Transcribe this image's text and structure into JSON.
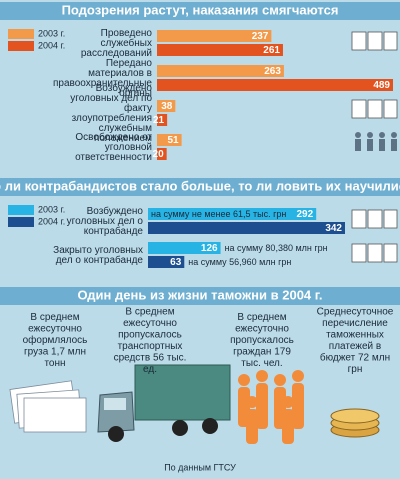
{
  "chart_data": [
    {
      "type": "bar",
      "orientation": "horizontal",
      "title": "Подозрения растут, наказания смягчаются",
      "categories": [
        "Проведено служебных расследований",
        "Передано материалов в правоохранительные органы",
        "Возбуждено уголовных дел по факту злоупотребления служебным положением",
        "Освобождено от уголовной ответственности"
      ],
      "series": [
        {
          "name": "2003 г.",
          "color": "#f39a4a",
          "values": [
            237,
            263,
            38,
            51
          ]
        },
        {
          "name": "2004 г.",
          "color": "#e2531f",
          "values": [
            261,
            489,
            21,
            20
          ]
        }
      ]
    },
    {
      "type": "bar",
      "orientation": "horizontal",
      "title": "То ли контрабандистов стало больше, то ли ловить их научились",
      "categories": [
        "Возбуждено уголовных дел о контрабанде",
        "Закрыто уголовных дел о контрабанде"
      ],
      "series": [
        {
          "name": "2003 г.",
          "color": "#27b3e3",
          "values": [
            292,
            126
          ],
          "value_notes": [
            "на сумму не менее 61,5 тыс. грн",
            "на сумму 80,380 млн грн"
          ]
        },
        {
          "name": "2004 г.",
          "color": "#1d4e8f",
          "values": [
            342,
            63
          ],
          "value_notes": [
            null,
            "на сумму 56,960 млн грн"
          ]
        }
      ]
    }
  ],
  "daily": {
    "title": "Один день из жизни таможни в 2004 г.",
    "items": [
      "В среднем ежесуточно оформлялось груза 1,7 млн тонн",
      "В среднем ежесуточно пропускалось транспортных средств 56 тыс. ед.",
      "В среднем ежесуточно пропускалось граждан 179 тыс. чел.",
      "Среднесуточное перечисление таможенных платежей в бюджет 72 млн грн"
    ]
  },
  "source": "По данным ГТСУ"
}
